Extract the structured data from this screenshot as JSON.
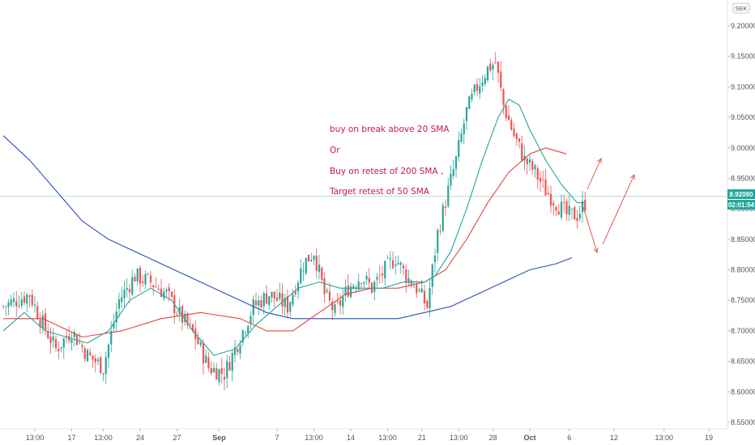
{
  "chart_data": {
    "type": "candlestick",
    "symbol_currency": "SEK",
    "ylim": [
      8.55,
      9.22
    ],
    "y_ticks": [
      "9.20000",
      "9.15000",
      "9.10000",
      "9.05000",
      "9.00000",
      "8.95000",
      "8.90000",
      "8.85000",
      "8.80000",
      "8.75000",
      "8.70000",
      "8.65000",
      "8.60000",
      "8.55000"
    ],
    "x_ticks": [
      "13:00",
      "17",
      "13:00",
      "24",
      "27",
      "Sep",
      "7",
      "13:00",
      "14",
      "13:00",
      "21",
      "13:00",
      "28",
      "Oct",
      "6",
      "12",
      "13:00",
      "19"
    ],
    "last_price": "8.92090",
    "countdown": "02:01:54",
    "colors": {
      "up": "#26a69a",
      "down": "#ef5350",
      "sma20": "#26a69a",
      "sma50": "#e0463c",
      "sma200": "#2a4db5",
      "annotation": "#c2185b",
      "price_tag": "#26a69a"
    },
    "indicators": [
      {
        "name": "20 SMA",
        "key": "sma20"
      },
      {
        "name": "50 SMA",
        "key": "sma50"
      },
      {
        "name": "200 SMA",
        "key": "sma200"
      }
    ],
    "annotations": [
      "buy on break above 20 SMA",
      "Or",
      "Buy on retest of 200 SMA ,",
      "Target retest of 50 SMA"
    ],
    "anchor_closes": [
      [
        0,
        8.74
      ],
      [
        10,
        8.76
      ],
      [
        14,
        8.72
      ],
      [
        20,
        8.67
      ],
      [
        26,
        8.7
      ],
      [
        32,
        8.66
      ],
      [
        38,
        8.64
      ],
      [
        44,
        8.75
      ],
      [
        50,
        8.79
      ],
      [
        56,
        8.78
      ],
      [
        62,
        8.76
      ],
      [
        68,
        8.72
      ],
      [
        73,
        8.69
      ],
      [
        78,
        8.64
      ],
      [
        84,
        8.63
      ],
      [
        89,
        8.68
      ],
      [
        95,
        8.74
      ],
      [
        101,
        8.76
      ],
      [
        108,
        8.74
      ],
      [
        114,
        8.81
      ],
      [
        118,
        8.83
      ],
      [
        122,
        8.76
      ],
      [
        126,
        8.73
      ],
      [
        131,
        8.77
      ],
      [
        136,
        8.79
      ],
      [
        140,
        8.77
      ],
      [
        145,
        8.8
      ],
      [
        149,
        8.82
      ],
      [
        153,
        8.79
      ],
      [
        157,
        8.77
      ],
      [
        161,
        8.74
      ],
      [
        165,
        8.86
      ],
      [
        169,
        8.93
      ],
      [
        172,
        8.98
      ],
      [
        176,
        9.06
      ],
      [
        180,
        9.1
      ],
      [
        184,
        9.13
      ],
      [
        187,
        9.14
      ],
      [
        190,
        9.07
      ],
      [
        194,
        9.02
      ],
      [
        198,
        8.98
      ],
      [
        202,
        8.96
      ],
      [
        206,
        8.93
      ],
      [
        210,
        8.91
      ],
      [
        214,
        8.89
      ],
      [
        218,
        8.89
      ],
      [
        221,
        8.91
      ]
    ],
    "sma20_points": [
      [
        0,
        8.7
      ],
      [
        8,
        8.73
      ],
      [
        16,
        8.7
      ],
      [
        24,
        8.69
      ],
      [
        32,
        8.68
      ],
      [
        40,
        8.7
      ],
      [
        48,
        8.75
      ],
      [
        56,
        8.77
      ],
      [
        64,
        8.75
      ],
      [
        72,
        8.7
      ],
      [
        80,
        8.66
      ],
      [
        88,
        8.67
      ],
      [
        96,
        8.71
      ],
      [
        104,
        8.74
      ],
      [
        112,
        8.77
      ],
      [
        120,
        8.78
      ],
      [
        128,
        8.77
      ],
      [
        136,
        8.77
      ],
      [
        144,
        8.77
      ],
      [
        152,
        8.78
      ],
      [
        160,
        8.78
      ],
      [
        164,
        8.79
      ],
      [
        170,
        8.83
      ],
      [
        176,
        8.9
      ],
      [
        182,
        8.98
      ],
      [
        188,
        9.05
      ],
      [
        192,
        9.08
      ],
      [
        196,
        9.07
      ],
      [
        200,
        9.03
      ],
      [
        206,
        8.98
      ],
      [
        212,
        8.94
      ],
      [
        218,
        8.91
      ],
      [
        221,
        8.91
      ]
    ],
    "sma50_points": [
      [
        0,
        8.72
      ],
      [
        15,
        8.72
      ],
      [
        30,
        8.69
      ],
      [
        45,
        8.7
      ],
      [
        60,
        8.72
      ],
      [
        75,
        8.73
      ],
      [
        90,
        8.72
      ],
      [
        100,
        8.7
      ],
      [
        110,
        8.7
      ],
      [
        120,
        8.73
      ],
      [
        130,
        8.76
      ],
      [
        140,
        8.77
      ],
      [
        150,
        8.77
      ],
      [
        160,
        8.78
      ],
      [
        168,
        8.8
      ],
      [
        176,
        8.85
      ],
      [
        184,
        8.91
      ],
      [
        192,
        8.96
      ],
      [
        200,
        8.99
      ],
      [
        206,
        9.0
      ],
      [
        214,
        8.99
      ]
    ],
    "sma200_points": [
      [
        0,
        9.02
      ],
      [
        10,
        8.98
      ],
      [
        20,
        8.93
      ],
      [
        30,
        8.88
      ],
      [
        40,
        8.85
      ],
      [
        50,
        8.83
      ],
      [
        60,
        8.81
      ],
      [
        70,
        8.79
      ],
      [
        80,
        8.77
      ],
      [
        90,
        8.75
      ],
      [
        100,
        8.73
      ],
      [
        110,
        8.72
      ],
      [
        120,
        8.72
      ],
      [
        130,
        8.72
      ],
      [
        140,
        8.72
      ],
      [
        150,
        8.72
      ],
      [
        160,
        8.73
      ],
      [
        170,
        8.74
      ],
      [
        180,
        8.76
      ],
      [
        190,
        8.78
      ],
      [
        200,
        8.8
      ],
      [
        210,
        8.81
      ],
      [
        216,
        8.82
      ]
    ]
  }
}
